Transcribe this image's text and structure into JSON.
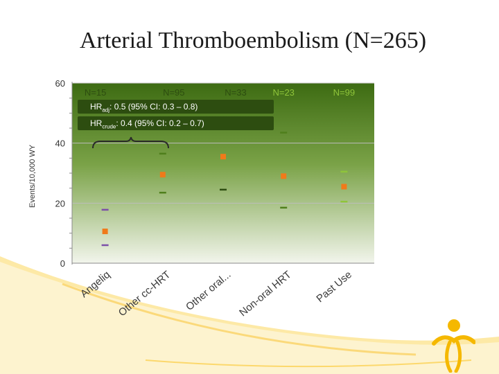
{
  "title": "Arterial Thromboembolism (N=265)",
  "chart_data": {
    "type": "scatter",
    "title": "Arterial Thromboembolism (N=265)",
    "ylabel": "Events/10,000 WY",
    "xlabel": "",
    "ylim": [
      0,
      60
    ],
    "yticks": [
      0,
      20,
      40,
      60
    ],
    "categories": [
      "Angeliq",
      "Other cc-HRT",
      "Other oral...",
      "Non-oral HRT",
      "Past Use"
    ],
    "n_labels": [
      "N=15",
      "N=95",
      "N=33",
      "N=23",
      "N=99"
    ],
    "estimate": [
      10.6,
      29.5,
      35.5,
      29,
      25.5
    ],
    "ci_upper": [
      17.8,
      36.5,
      null,
      43.5,
      30.5
    ],
    "ci_lower": [
      6,
      23.5,
      24.5,
      18.5,
      20.5
    ],
    "series_colors": [
      "#7b4fa8",
      "#4f7f1c",
      "#4f7f1c",
      "#4f7f1c",
      "#8fc53a"
    ],
    "estimate_color": "#f07a1a",
    "annotations": {
      "hr_adj_main": "HR",
      "hr_adj_sub": "adj",
      "hr_adj_rest": ": 0.5 (95% CI: 0.3 – 0.8)",
      "hr_crude_main": "HR",
      "hr_crude_sub": "crude",
      "hr_crude_rest": ": 0.4 (95% CI: 0.2 – 0.7)"
    }
  }
}
